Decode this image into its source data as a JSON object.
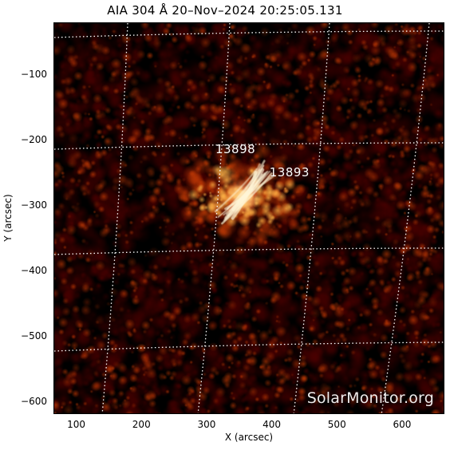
{
  "title": "AIA 304 Å 20–Nov–2024 20:25:05.131",
  "axes": {
    "xlabel": "X (arcsec)",
    "ylabel": "Y (arcsec)",
    "xticks": [
      "100",
      "200",
      "300",
      "400",
      "500",
      "600"
    ],
    "yticks": [
      "−100",
      "−200",
      "−300",
      "−400",
      "−500",
      "−600"
    ],
    "xlim": [
      65,
      665
    ],
    "ylim": [
      -620,
      -20
    ]
  },
  "active_regions": [
    {
      "label": "13898",
      "x": 327,
      "y": -217
    },
    {
      "label": "13893",
      "x": 410,
      "y": -252
    }
  ],
  "watermark": "SolarMonitor.org",
  "colors": {
    "background": "#000000",
    "emission_low": "#4a0000",
    "emission_mid": "#c23a05",
    "emission_high": "#ffb347",
    "emission_peak": "#fff6d8",
    "grid": "#ffffff"
  }
}
